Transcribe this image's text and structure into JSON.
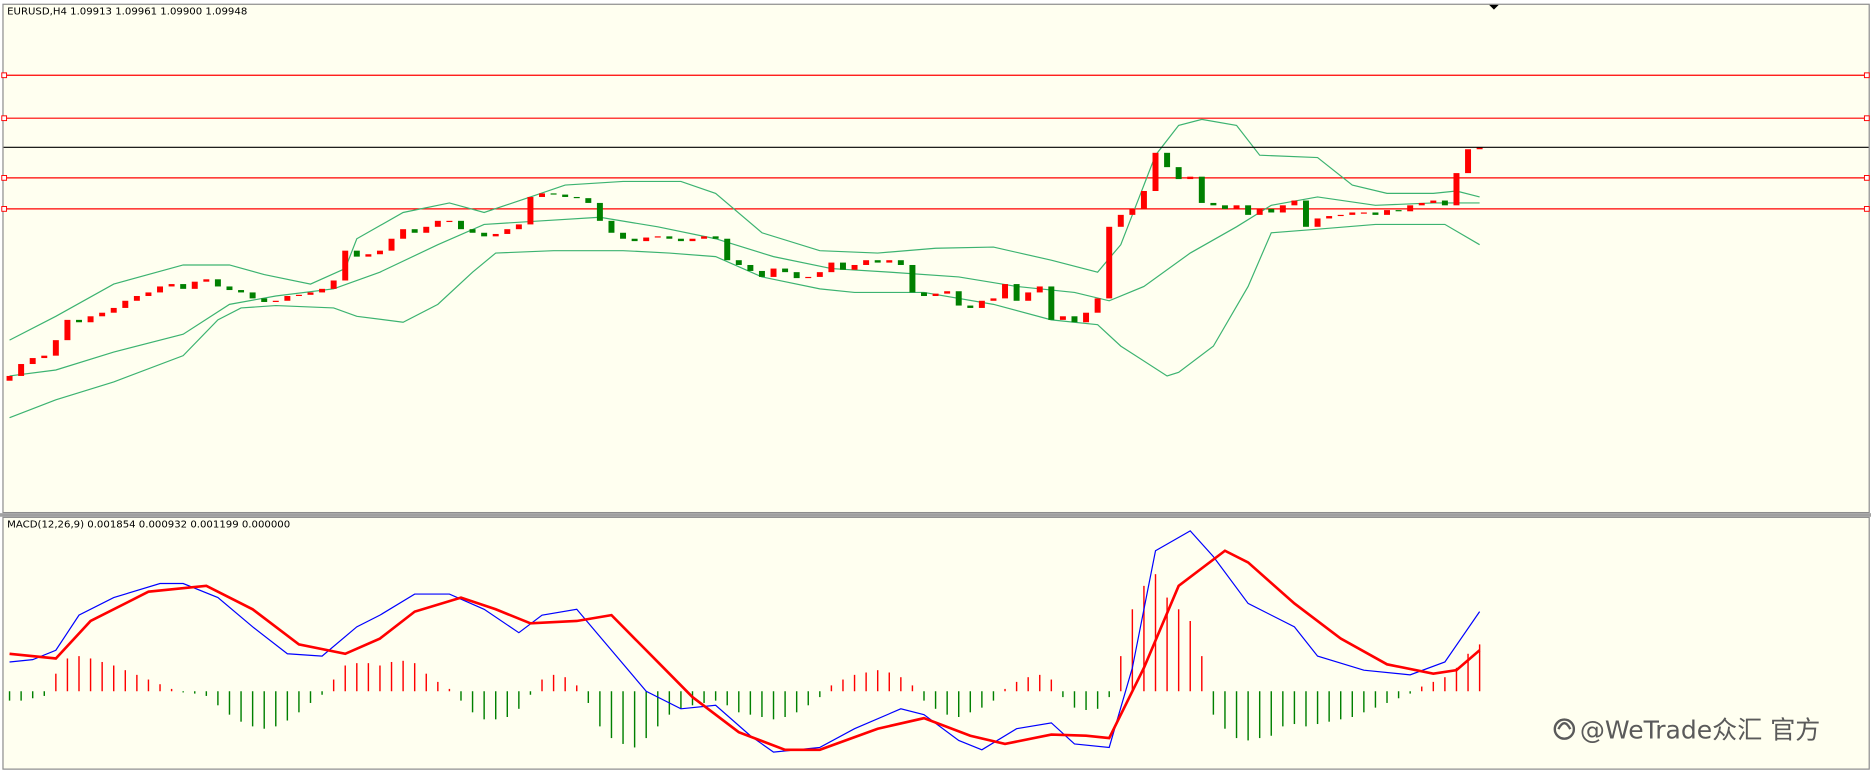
{
  "header": "EURUSD,H4  1.09913 1.09961 1.09900 1.09948",
  "watermark": "@WeTrade众汇 官方",
  "chart_data": [
    {
      "type": "candlestick",
      "open": 1.0897,
      "values": [
        1.0899,
        1.0904,
        1.09065,
        1.09075,
        1.0914,
        1.09225,
        1.09215,
        1.0924,
        1.09255,
        1.09275,
        1.09305,
        1.09325,
        1.0934,
        1.09365,
        1.09375,
        1.09355,
        1.09385,
        1.09395,
        1.09365,
        1.0935,
        1.0934,
        1.09315,
        1.093,
        1.09305,
        1.09325,
        1.0933,
        1.0934,
        1.09355,
        1.0939,
        1.09515,
        1.0949,
        1.095,
        1.09515,
        1.09565,
        1.09605,
        1.0959,
        1.09615,
        1.0964,
        1.0964,
        1.09605,
        1.0959,
        1.09575,
        1.09585,
        1.09605,
        1.09625,
        1.0974,
        1.09755,
        1.0975,
        1.0974,
        1.09735,
        1.09715,
        1.0964,
        1.0959,
        1.09565,
        1.09555,
        1.0957,
        1.09575,
        1.09565,
        1.09555,
        1.09565,
        1.09575,
        1.09565,
        1.09475,
        1.09455,
        1.0943,
        1.09405,
        1.0944,
        1.09425,
        1.094,
        1.09405,
        1.09425,
        1.09465,
        1.09435,
        1.09455,
        1.09475,
        1.09465,
        1.09475,
        1.09455,
        1.0934,
        1.09325,
        1.09335,
        1.09345,
        1.09285,
        1.09275,
        1.09305,
        1.09315,
        1.09375,
        1.09305,
        1.0934,
        1.09365,
        1.09225,
        1.0924,
        1.09215,
        1.09255,
        1.09315,
        1.09615,
        1.09665,
        1.0969,
        1.09765,
        1.09925,
        1.09865,
        1.09815,
        1.09825,
        1.09715,
        1.09705,
        1.0969,
        1.09705,
        1.09665,
        1.0969,
        1.09675,
        1.09705,
        1.09725,
        1.09615,
        1.0965,
        1.0966,
        1.09665,
        1.09675,
        1.09675,
        1.09665,
        1.09685,
        1.0968,
        1.09705,
        1.09715,
        1.09725,
        1.09705,
        1.0984,
        1.0994,
        1.09948
      ],
      "up_color": "#ff0000",
      "down_color": "#008000",
      "ylim": [
        1.0842,
        1.1054
      ],
      "band_color": "#3cb371",
      "bands": [
        {
          "x": [
            0,
            4,
            9,
            15,
            19,
            22,
            26,
            29,
            30,
            34,
            38,
            41,
            45,
            48,
            53,
            58,
            61,
            65,
            70,
            75,
            80,
            85,
            90,
            94,
            96,
            99,
            101,
            103,
            106,
            108,
            113,
            116,
            119,
            123,
            125,
            127
          ],
          "values": [
            1.0914,
            1.0924,
            1.09375,
            1.09455,
            1.09455,
            1.09415,
            1.09375,
            1.0944,
            1.09565,
            1.09675,
            1.09715,
            1.09675,
            1.0974,
            1.0979,
            1.09805,
            1.09805,
            1.09755,
            1.0959,
            1.09515,
            1.09505,
            1.09525,
            1.0953,
            1.09475,
            1.09425,
            1.0954,
            1.09915,
            1.1004,
            1.10065,
            1.1004,
            1.09915,
            1.09905,
            1.0979,
            1.09755,
            1.09755,
            1.09765,
            1.0974
          ]
        },
        {
          "x": [
            0,
            4,
            9,
            15,
            19,
            23,
            28,
            32,
            37,
            41,
            46,
            51,
            56,
            61,
            66,
            71,
            76,
            82,
            87,
            92,
            95,
            98,
            102,
            106,
            109,
            113,
            118,
            123,
            127
          ],
          "values": [
            1.0899,
            1.09015,
            1.0909,
            1.09165,
            1.0929,
            1.09325,
            1.09355,
            1.09425,
            1.0954,
            1.09625,
            1.0964,
            1.09655,
            1.09615,
            1.09565,
            1.0949,
            1.0944,
            1.09425,
            1.09405,
            1.09365,
            1.0934,
            1.09305,
            1.09365,
            1.09505,
            1.09615,
            1.09705,
            1.0974,
            1.09705,
            1.09715,
            1.09715
          ]
        },
        {
          "x": [
            0,
            4,
            9,
            15,
            18,
            20,
            23,
            28,
            30,
            34,
            37,
            40,
            42,
            47,
            53,
            57,
            61,
            65,
            70,
            73,
            79,
            85,
            90,
            94,
            96,
            100,
            101,
            104,
            107,
            109,
            113,
            118,
            124,
            127
          ],
          "values": [
            1.08815,
            1.0889,
            1.08965,
            1.09075,
            1.09225,
            1.09275,
            1.09285,
            1.09275,
            1.0924,
            1.09215,
            1.0929,
            1.09425,
            1.09505,
            1.09515,
            1.09515,
            1.09505,
            1.0949,
            1.09405,
            1.09355,
            1.0934,
            1.0934,
            1.0929,
            1.09225,
            1.09205,
            1.09115,
            1.0899,
            1.09005,
            1.09115,
            1.09365,
            1.0959,
            1.09605,
            1.09625,
            1.09625,
            1.0954
          ]
        }
      ],
      "levels": [
        1.1025,
        1.1007,
        1.0982,
        1.0969
      ],
      "level_color": "#ff0000",
      "bid_color": "#000000"
    },
    {
      "type": "macd",
      "title": "MACD(12,26,9) 0.001854 0.000932 0.001199 0.000000",
      "ylim": [
        -0.00066,
        0.00148
      ],
      "histogram": [
        -8e-05,
        -8e-05,
        -6e-05,
        -4e-05,
        0.00015,
        0.00028,
        0.0003,
        0.00028,
        0.00025,
        0.00022,
        0.00018,
        0.00014,
        0.0001,
        6e-05,
        2e-05,
        -1e-05,
        -2e-05,
        -4e-05,
        -0.00012,
        -0.0002,
        -0.00026,
        -0.0003,
        -0.00032,
        -0.0003,
        -0.00025,
        -0.00018,
        -0.0001,
        -3e-05,
        0.0001,
        0.00022,
        0.00024,
        0.00024,
        0.00022,
        0.00025,
        0.00026,
        0.00024,
        0.00015,
        8e-05,
        2e-05,
        -8e-05,
        -0.00018,
        -0.00024,
        -0.00024,
        -0.00022,
        -0.00015,
        -3e-05,
        0.0001,
        0.00014,
        0.00012,
        5e-05,
        -0.0001,
        -0.0003,
        -0.0004,
        -0.00045,
        -0.00048,
        -0.0004,
        -0.0003,
        -0.0002,
        -0.00015,
        -0.00012,
        -0.0001,
        -8e-05,
        -0.00012,
        -0.00018,
        -0.0002,
        -0.00022,
        -0.00024,
        -0.00022,
        -0.00018,
        -0.00012,
        -5e-05,
        5e-05,
        0.0001,
        0.00014,
        0.00016,
        0.00018,
        0.00016,
        0.00012,
        5e-05,
        -8e-05,
        -0.00015,
        -0.0002,
        -0.00022,
        -0.00018,
        -0.00014,
        -8e-05,
        2e-05,
        8e-05,
        0.00012,
        0.00014,
        0.0001,
        -5e-05,
        -0.00014,
        -0.00016,
        -0.00015,
        -5e-05,
        0.0003,
        0.0007,
        0.0009,
        0.001,
        0.0008,
        0.0007,
        0.0006,
        0.0003,
        -0.0002,
        -0.00032,
        -0.0004,
        -0.00042,
        -0.0004,
        -0.00038,
        -0.0003,
        -0.00028,
        -0.0003,
        -0.00028,
        -0.00026,
        -0.00024,
        -0.00022,
        -0.00018,
        -0.00014,
        -0.0001,
        -6e-05,
        -2e-05,
        4e-05,
        8e-05,
        0.00012,
        0.0002,
        0.00032,
        0.0004
      ],
      "up_color": "#ff0000",
      "down_color": "#008000",
      "lines": [
        {
          "color": "#0000ff",
          "x": [
            0,
            2,
            4,
            6,
            9,
            13,
            15,
            18,
            21,
            24,
            27,
            30,
            32,
            35,
            38,
            41,
            44,
            46,
            49,
            52,
            55,
            58,
            61,
            64,
            66,
            70,
            73,
            77,
            79,
            82,
            84,
            87,
            90,
            92,
            95,
            97,
            99,
            102,
            104,
            107,
            111,
            113,
            117,
            121,
            124,
            127
          ],
          "values": [
            0.00025,
            0.00027,
            0.00035,
            0.00065,
            0.0008,
            0.00092,
            0.00092,
            0.0008,
            0.00055,
            0.00032,
            0.0003,
            0.00055,
            0.00065,
            0.00083,
            0.00083,
            0.0007,
            0.0005,
            0.00065,
            0.0007,
            0.00035,
            0,
            -0.00015,
            -0.00012,
            -0.00038,
            -0.00052,
            -0.00048,
            -0.00032,
            -0.00015,
            -0.0002,
            -0.00042,
            -0.0005,
            -0.00032,
            -0.00027,
            -0.00045,
            -0.00048,
            0.0002,
            0.0012,
            0.00137,
            0.00115,
            0.00075,
            0.00055,
            0.0003,
            0.00018,
            0.00014,
            0.00025,
            0.00068
          ]
        },
        {
          "color": "#ff0000",
          "x": [
            0,
            4,
            7,
            12,
            17,
            21,
            25,
            29,
            32,
            35,
            39,
            42,
            45,
            49,
            52,
            56,
            59,
            63,
            67,
            70,
            75,
            79,
            83,
            86,
            90,
            93,
            95,
            98,
            101,
            105,
            107,
            111,
            115,
            119,
            123,
            125,
            127
          ],
          "values": [
            0.00032,
            0.00028,
            0.0006,
            0.00085,
            0.0009,
            0.0007,
            0.0004,
            0.00032,
            0.00045,
            0.00068,
            0.0008,
            0.0007,
            0.00058,
            0.0006,
            0.00065,
            0.00025,
            -5e-05,
            -0.00035,
            -0.0005,
            -0.0005,
            -0.00032,
            -0.00023,
            -0.00038,
            -0.00045,
            -0.00037,
            -0.00038,
            -0.0004,
            0.0002,
            0.0009,
            0.0012,
            0.0011,
            0.00075,
            0.00045,
            0.00023,
            0.00015,
            0.00018,
            0.00035
          ]
        }
      ]
    }
  ]
}
